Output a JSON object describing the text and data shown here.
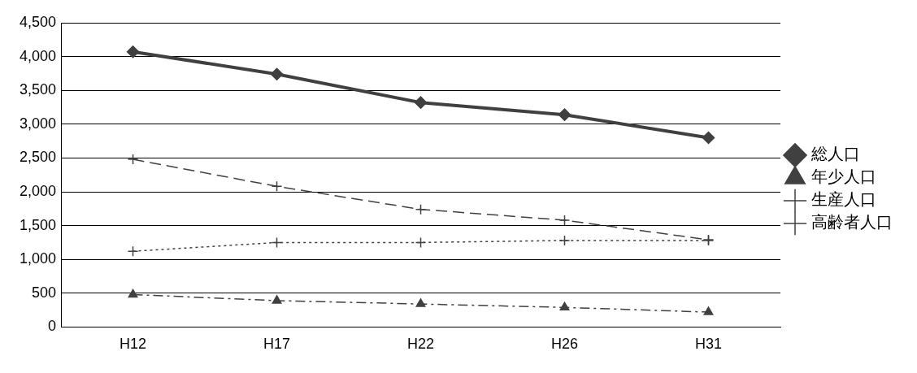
{
  "chart_data": {
    "type": "line",
    "categories": [
      "H12",
      "H17",
      "H22",
      "H26",
      "H31"
    ],
    "series": [
      {
        "name": "総人口",
        "color": "#404040",
        "values": [
          4070,
          3740,
          3320,
          3140,
          2800
        ],
        "marker": "diamond",
        "line_style": "solid"
      },
      {
        "name": "年少人口",
        "color": "#404040",
        "values": [
          480,
          390,
          340,
          290,
          220
        ],
        "marker": "triangle",
        "line_style": "dashdot"
      },
      {
        "name": "生産人口",
        "color": "#404040",
        "values": [
          2480,
          2080,
          1740,
          1580,
          1290
        ],
        "marker": "cross",
        "line_style": "dashed"
      },
      {
        "name": "高齢者人口",
        "color": "#404040",
        "values": [
          1120,
          1250,
          1250,
          1280,
          1280
        ],
        "marker": "cross",
        "line_style": "dotted"
      }
    ],
    "ylim": [
      0,
      4500
    ],
    "yticks": [
      {
        "value": 0,
        "label": "0"
      },
      {
        "value": 500,
        "label": "500"
      },
      {
        "value": 1000,
        "label": "1,000"
      },
      {
        "value": 1500,
        "label": "1,500"
      },
      {
        "value": 2000,
        "label": "2,000"
      },
      {
        "value": 2500,
        "label": "2,500"
      },
      {
        "value": 3000,
        "label": "3,000"
      },
      {
        "value": 3500,
        "label": "3,500"
      },
      {
        "value": 4000,
        "label": "4,000"
      },
      {
        "value": 4500,
        "label": "4,500"
      }
    ],
    "grid": "y",
    "legend": "right"
  }
}
